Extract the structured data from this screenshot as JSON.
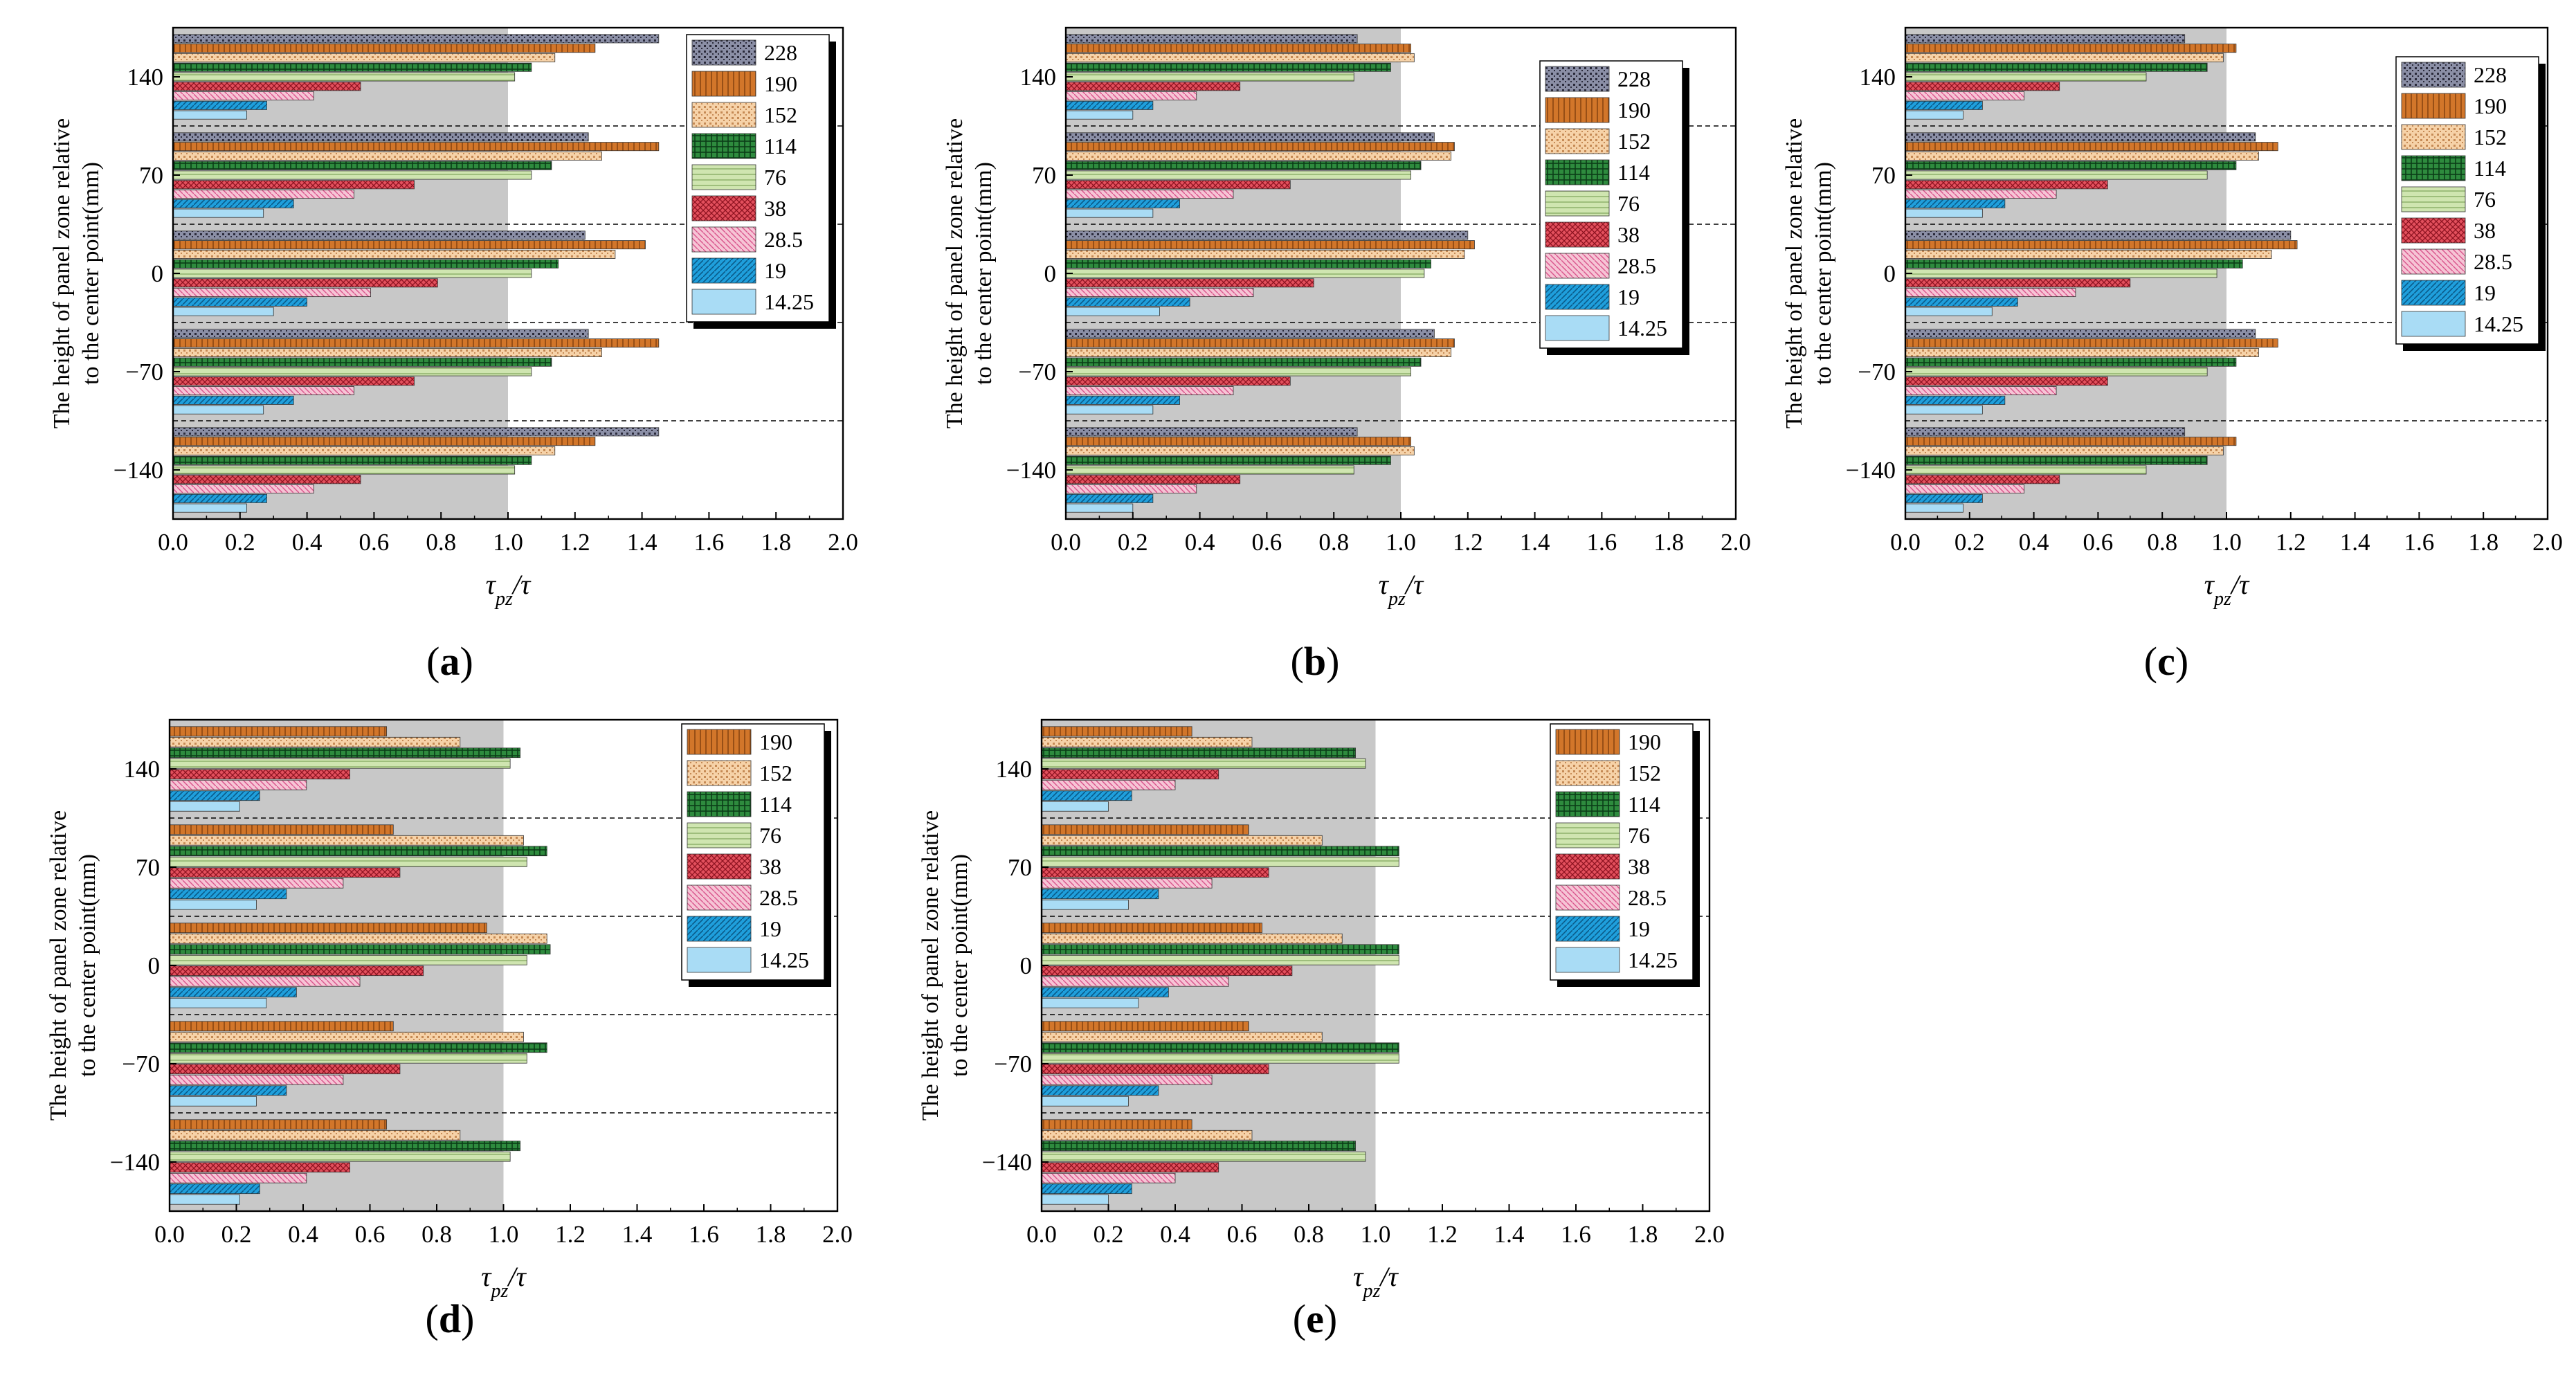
{
  "figure": {
    "panel_labels": [
      "(a)",
      "(b)",
      "(c)",
      "(d)",
      "(e)"
    ]
  },
  "patterns": {
    "228": {
      "base": "#8b8fa6",
      "fg": "#2a2a3a",
      "kind": "dots"
    },
    "190": {
      "base": "#d2762a",
      "fg": "#8a4510",
      "kind": "vlines"
    },
    "152": {
      "base": "#f6d2a8",
      "fg": "#c58a55",
      "kind": "dots"
    },
    "114": {
      "base": "#2e8b3e",
      "fg": "#0b3d17",
      "kind": "grid"
    },
    "76": {
      "base": "#cfe5b0",
      "fg": "#7ea35a",
      "kind": "hlines"
    },
    "38": {
      "base": "#e3505d",
      "fg": "#8d1220",
      "kind": "cross"
    },
    "28.5": {
      "base": "#f6c4d5",
      "fg": "#d9548c",
      "kind": "diag"
    },
    "19": {
      "base": "#1f9fdc",
      "fg": "#0a5a88",
      "kind": "diag2"
    },
    "14.25": {
      "base": "#a9dcf5",
      "fg": "#a9dcf5",
      "kind": "solid"
    }
  },
  "chart_data": [
    {
      "id": "a",
      "type": "bar",
      "orientation": "horizontal",
      "title": "",
      "xlabel": "τpz/τ",
      "ylabel": "The height of panel zone relative to the center point(mm)",
      "xlim": [
        0,
        2.0
      ],
      "x_ticks": [
        "0.0",
        "0.2",
        "0.4",
        "0.6",
        "0.8",
        "1.0",
        "1.2",
        "1.4",
        "1.6",
        "1.8",
        "2.0"
      ],
      "categories": [
        "140",
        "70",
        "0",
        "-70",
        "-140"
      ],
      "category_labels": [
        "140",
        "70",
        "0",
        "−70",
        "−140"
      ],
      "shaded_region": [
        0,
        1.0
      ],
      "series": [
        {
          "name": "228",
          "values": [
            1.45,
            1.24,
            1.23,
            1.24,
            1.45
          ]
        },
        {
          "name": "190",
          "values": [
            1.26,
            1.45,
            1.41,
            1.45,
            1.26
          ]
        },
        {
          "name": "152",
          "values": [
            1.14,
            1.28,
            1.32,
            1.28,
            1.14
          ]
        },
        {
          "name": "114",
          "values": [
            1.07,
            1.13,
            1.15,
            1.13,
            1.07
          ]
        },
        {
          "name": "76",
          "values": [
            1.02,
            1.07,
            1.07,
            1.07,
            1.02
          ]
        },
        {
          "name": "38",
          "values": [
            0.56,
            0.72,
            0.79,
            0.72,
            0.56
          ]
        },
        {
          "name": "28.5",
          "values": [
            0.42,
            0.54,
            0.59,
            0.54,
            0.42
          ]
        },
        {
          "name": "19",
          "values": [
            0.28,
            0.36,
            0.4,
            0.36,
            0.28
          ]
        },
        {
          "name": "14.25",
          "values": [
            0.22,
            0.27,
            0.3,
            0.27,
            0.22
          ]
        }
      ]
    },
    {
      "id": "b",
      "type": "bar",
      "orientation": "horizontal",
      "title": "",
      "xlabel": "τpz/τ",
      "ylabel": "The height of panel zone relative to the center point(mm)",
      "xlim": [
        0,
        2.0
      ],
      "x_ticks": [
        "0.0",
        "0.2",
        "0.4",
        "0.6",
        "0.8",
        "1.0",
        "1.2",
        "1.4",
        "1.6",
        "1.8",
        "2.0"
      ],
      "categories": [
        "140",
        "70",
        "0",
        "-70",
        "-140"
      ],
      "category_labels": [
        "140",
        "70",
        "0",
        "−70",
        "−140"
      ],
      "shaded_region": [
        0,
        1.0
      ],
      "series": [
        {
          "name": "228",
          "values": [
            0.87,
            1.1,
            1.2,
            1.1,
            0.87
          ]
        },
        {
          "name": "190",
          "values": [
            1.03,
            1.16,
            1.22,
            1.16,
            1.03
          ]
        },
        {
          "name": "152",
          "values": [
            1.04,
            1.15,
            1.19,
            1.15,
            1.04
          ]
        },
        {
          "name": "114",
          "values": [
            0.97,
            1.06,
            1.09,
            1.06,
            0.97
          ]
        },
        {
          "name": "76",
          "values": [
            0.86,
            1.03,
            1.07,
            1.03,
            0.86
          ]
        },
        {
          "name": "38",
          "values": [
            0.52,
            0.67,
            0.74,
            0.67,
            0.52
          ]
        },
        {
          "name": "28.5",
          "values": [
            0.39,
            0.5,
            0.56,
            0.5,
            0.39
          ]
        },
        {
          "name": "19",
          "values": [
            0.26,
            0.34,
            0.37,
            0.34,
            0.26
          ]
        },
        {
          "name": "14.25",
          "values": [
            0.2,
            0.26,
            0.28,
            0.26,
            0.2
          ]
        }
      ]
    },
    {
      "id": "c",
      "type": "bar",
      "orientation": "horizontal",
      "title": "",
      "xlabel": "τpz/τ",
      "ylabel": "The height of panel zone relative to the center point(mm)",
      "xlim": [
        0,
        2.0
      ],
      "x_ticks": [
        "0.0",
        "0.2",
        "0.4",
        "0.6",
        "0.8",
        "1.0",
        "1.2",
        "1.4",
        "1.6",
        "1.8",
        "2.0"
      ],
      "categories": [
        "140",
        "70",
        "0",
        "-70",
        "-140"
      ],
      "category_labels": [
        "140",
        "70",
        "0",
        "−70",
        "−140"
      ],
      "shaded_region": [
        0,
        1.0
      ],
      "series": [
        {
          "name": "228",
          "values": [
            0.87,
            1.09,
            1.2,
            1.09,
            0.87
          ]
        },
        {
          "name": "190",
          "values": [
            1.03,
            1.16,
            1.22,
            1.16,
            1.03
          ]
        },
        {
          "name": "152",
          "values": [
            0.99,
            1.1,
            1.14,
            1.1,
            0.99
          ]
        },
        {
          "name": "114",
          "values": [
            0.94,
            1.03,
            1.05,
            1.03,
            0.94
          ]
        },
        {
          "name": "76",
          "values": [
            0.75,
            0.94,
            0.97,
            0.94,
            0.75
          ]
        },
        {
          "name": "38",
          "values": [
            0.48,
            0.63,
            0.7,
            0.63,
            0.48
          ]
        },
        {
          "name": "28.5",
          "values": [
            0.37,
            0.47,
            0.53,
            0.47,
            0.37
          ]
        },
        {
          "name": "19",
          "values": [
            0.24,
            0.31,
            0.35,
            0.31,
            0.24
          ]
        },
        {
          "name": "14.25",
          "values": [
            0.18,
            0.24,
            0.27,
            0.24,
            0.18
          ]
        }
      ]
    },
    {
      "id": "d",
      "type": "bar",
      "orientation": "horizontal",
      "title": "",
      "xlabel": "τpz/τ",
      "ylabel": "The height of panel zone relative to the center point(mm)",
      "xlim": [
        0,
        2.0
      ],
      "x_ticks": [
        "0.0",
        "0.2",
        "0.4",
        "0.6",
        "0.8",
        "1.0",
        "1.2",
        "1.4",
        "1.6",
        "1.8",
        "2.0"
      ],
      "categories": [
        "140",
        "70",
        "0",
        "-70",
        "-140"
      ],
      "category_labels": [
        "140",
        "70",
        "0",
        "−70",
        "−140"
      ],
      "shaded_region": [
        0,
        1.0
      ],
      "series": [
        {
          "name": "190",
          "values": [
            0.65,
            0.67,
            0.95,
            0.67,
            0.65
          ]
        },
        {
          "name": "152",
          "values": [
            0.87,
            1.06,
            1.13,
            1.06,
            0.87
          ]
        },
        {
          "name": "114",
          "values": [
            1.05,
            1.13,
            1.14,
            1.13,
            1.05
          ]
        },
        {
          "name": "76",
          "values": [
            1.02,
            1.07,
            1.07,
            1.07,
            1.02
          ]
        },
        {
          "name": "38",
          "values": [
            0.54,
            0.69,
            0.76,
            0.69,
            0.54
          ]
        },
        {
          "name": "28.5",
          "values": [
            0.41,
            0.52,
            0.57,
            0.52,
            0.41
          ]
        },
        {
          "name": "19",
          "values": [
            0.27,
            0.35,
            0.38,
            0.35,
            0.27
          ]
        },
        {
          "name": "14.25",
          "values": [
            0.21,
            0.26,
            0.29,
            0.26,
            0.21
          ]
        }
      ]
    },
    {
      "id": "e",
      "type": "bar",
      "orientation": "horizontal",
      "title": "",
      "xlabel": "τpz/τ",
      "ylabel": "The height of panel zone relative to the center point(mm)",
      "xlim": [
        0,
        2.0
      ],
      "x_ticks": [
        "0.0",
        "0.2",
        "0.4",
        "0.6",
        "0.8",
        "1.0",
        "1.2",
        "1.4",
        "1.6",
        "1.8",
        "2.0"
      ],
      "categories": [
        "140",
        "70",
        "0",
        "-70",
        "-140"
      ],
      "category_labels": [
        "140",
        "70",
        "0",
        "−70",
        "−140"
      ],
      "shaded_region": [
        0,
        1.0
      ],
      "series": [
        {
          "name": "190",
          "values": [
            0.45,
            0.62,
            0.66,
            0.62,
            0.45
          ]
        },
        {
          "name": "152",
          "values": [
            0.63,
            0.84,
            0.9,
            0.84,
            0.63
          ]
        },
        {
          "name": "114",
          "values": [
            0.94,
            1.07,
            1.07,
            1.07,
            0.94
          ]
        },
        {
          "name": "76",
          "values": [
            0.97,
            1.07,
            1.07,
            1.07,
            0.97
          ]
        },
        {
          "name": "38",
          "values": [
            0.53,
            0.68,
            0.75,
            0.68,
            0.53
          ]
        },
        {
          "name": "28.5",
          "values": [
            0.4,
            0.51,
            0.56,
            0.51,
            0.4
          ]
        },
        {
          "name": "19",
          "values": [
            0.27,
            0.35,
            0.38,
            0.35,
            0.27
          ]
        },
        {
          "name": "14.25",
          "values": [
            0.2,
            0.26,
            0.29,
            0.26,
            0.2
          ]
        }
      ]
    }
  ]
}
